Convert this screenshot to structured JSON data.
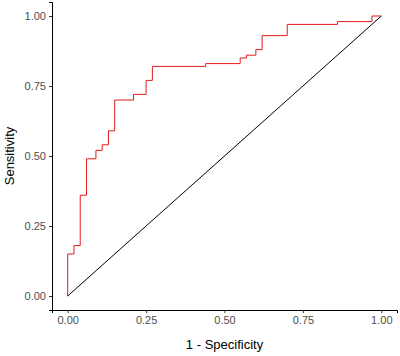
{
  "chart_data": {
    "type": "line",
    "x_label": "1 - Specificity",
    "y_label": "Sensitivity",
    "xlim": [
      -0.05,
      1.05
    ],
    "ylim": [
      -0.05,
      1.05
    ],
    "xticks": [
      {
        "value": 0,
        "label": "0.00"
      },
      {
        "value": 0.25,
        "label": "0.25"
      },
      {
        "value": 0.5,
        "label": "0.50"
      },
      {
        "value": 0.75,
        "label": "0.75"
      },
      {
        "value": 1,
        "label": "1.00"
      }
    ],
    "yticks": [
      {
        "value": 0,
        "label": "0.00"
      },
      {
        "value": 0.25,
        "label": "0.25"
      },
      {
        "value": 0.5,
        "label": "0.50"
      },
      {
        "value": 0.75,
        "label": "0.75"
      },
      {
        "value": 1,
        "label": "1.00"
      }
    ],
    "grid": false,
    "series": [
      {
        "color": "#e41a1c",
        "x": [
          0,
          0,
          0.02,
          0.02,
          0.04,
          0.04,
          0.06,
          0.06,
          0.09,
          0.09,
          0.11,
          0.11,
          0.13,
          0.13,
          0.15,
          0.15,
          0.21,
          0.21,
          0.25,
          0.25,
          0.27,
          0.27,
          0.44,
          0.44,
          0.55,
          0.55,
          0.57,
          0.57,
          0.6,
          0.6,
          0.62,
          0.62,
          0.7,
          0.7,
          0.86,
          0.86,
          0.97,
          0.97,
          1
        ],
        "values": [
          0,
          0.15,
          0.15,
          0.18,
          0.18,
          0.36,
          0.36,
          0.49,
          0.49,
          0.52,
          0.52,
          0.54,
          0.54,
          0.59,
          0.59,
          0.7,
          0.7,
          0.72,
          0.72,
          0.77,
          0.77,
          0.82,
          0.82,
          0.83,
          0.83,
          0.85,
          0.85,
          0.86,
          0.86,
          0.88,
          0.88,
          0.93,
          0.93,
          0.97,
          0.97,
          0.98,
          0.98,
          1,
          1
        ]
      },
      {
        "color": "#000000",
        "x": [
          0,
          1
        ],
        "values": [
          0,
          1
        ]
      }
    ]
  }
}
